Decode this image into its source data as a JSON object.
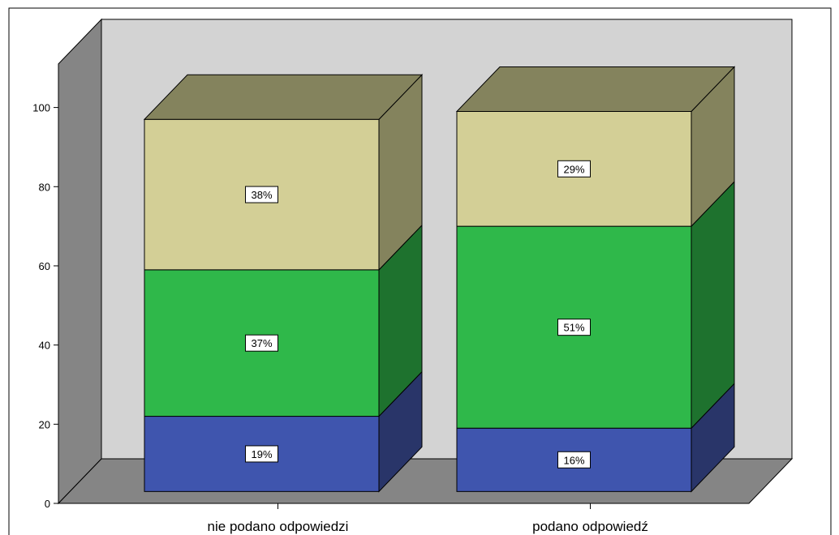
{
  "chart_data": {
    "type": "bar",
    "stacked": true,
    "three_d": true,
    "categories": [
      "nie podano odpowiedzi",
      "podano odpowiedź"
    ],
    "series": [
      {
        "values": [
          19,
          16
        ],
        "labels": [
          "19%",
          "16%"
        ],
        "color": "#3f55ae",
        "side_color": "#293569"
      },
      {
        "values": [
          37,
          51
        ],
        "labels": [
          "37%",
          "51%"
        ],
        "color": "#2fb84a",
        "side_color": "#1e722e"
      },
      {
        "values": [
          38,
          29
        ],
        "labels": [
          "38%",
          "29%"
        ],
        "color": "#d3cf96",
        "side_color": "#84835d"
      }
    ],
    "ylim": [
      0,
      100
    ],
    "yticks": [
      0,
      20,
      40,
      60,
      80,
      100
    ],
    "title": "",
    "xlabel": "",
    "ylabel": "",
    "grid": false,
    "legend": "none",
    "colors": {
      "back_wall": "#d3d3d3",
      "left_wall": "#858585",
      "floor": "#858585",
      "top_face_c1": "#84835d",
      "top_face_c2": "#84835d"
    }
  }
}
